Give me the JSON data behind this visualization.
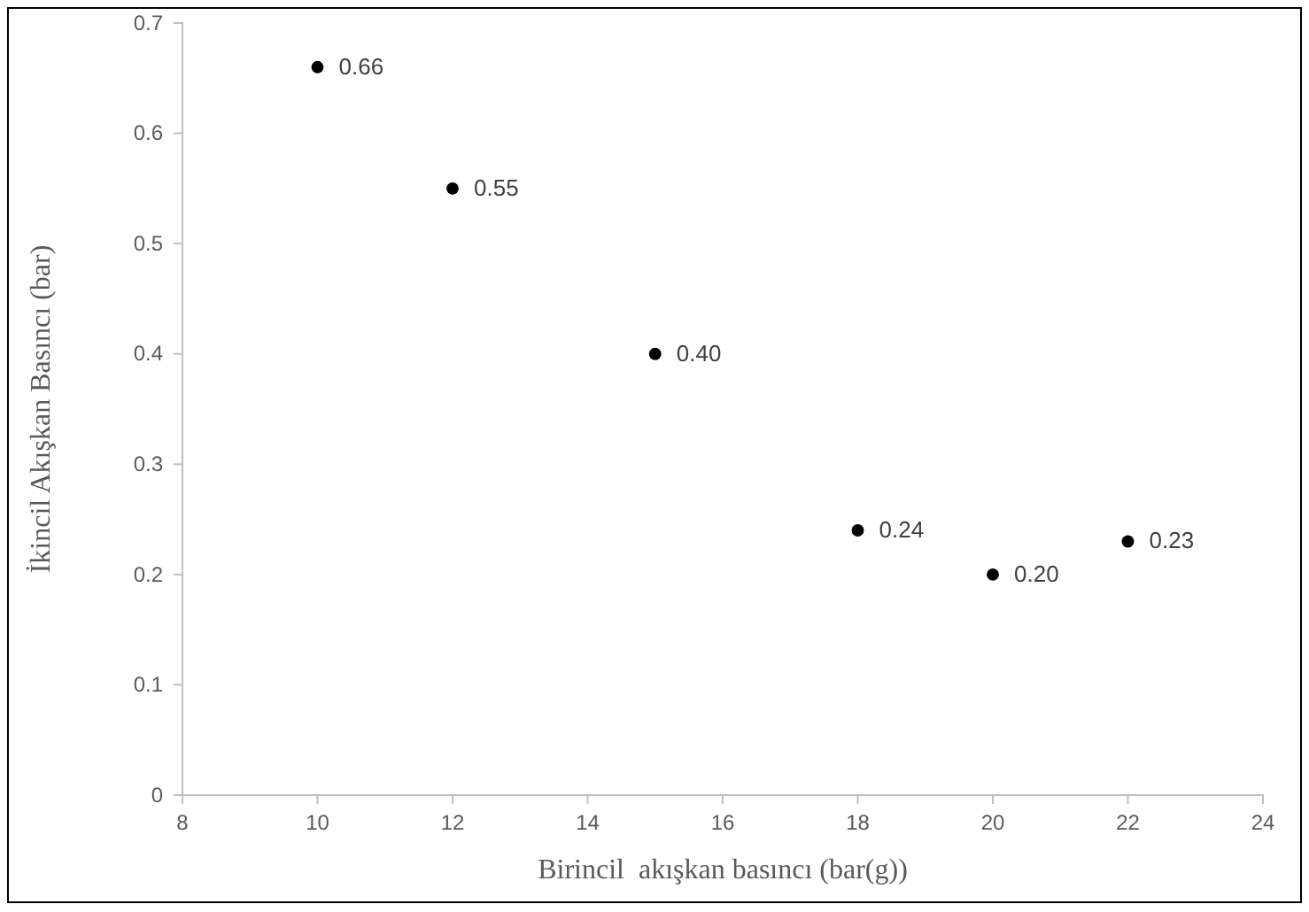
{
  "chart_data": {
    "type": "scatter",
    "xlabel": "Birincil  akışkan basıncı (bar(g))",
    "ylabel": "İkincil Akışkan Basıncı (bar)",
    "x": [
      10,
      12,
      15,
      18,
      20,
      22
    ],
    "series": [
      {
        "color": "#000000",
        "values": [
          0.66,
          0.55,
          0.4,
          0.24,
          0.2,
          0.23
        ],
        "value_labels": [
          "0.66",
          "0.55",
          "0.40",
          "0.24",
          "0.20",
          "0.23"
        ]
      }
    ],
    "xlim": [
      8,
      24
    ],
    "xticks": [
      8,
      10,
      12,
      14,
      16,
      18,
      20,
      22,
      24
    ],
    "ylim": [
      0,
      0.7
    ],
    "yticks": [
      0,
      0.1,
      0.2,
      0.3,
      0.4,
      0.5,
      0.6,
      0.7
    ],
    "grid": false,
    "marker": "circle"
  }
}
